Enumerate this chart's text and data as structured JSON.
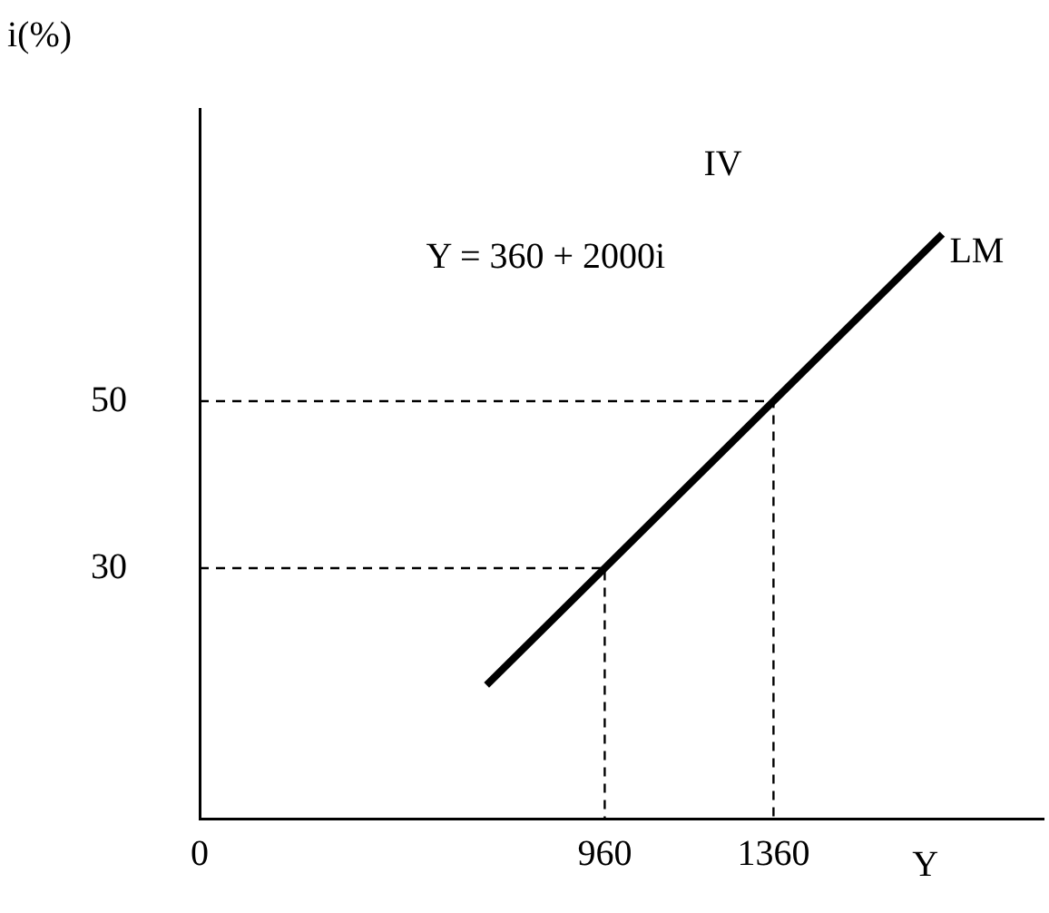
{
  "chart_data": {
    "type": "line",
    "ylabel": "i(%)",
    "xlabel": "Y",
    "annotations": [
      "IV",
      "Y = 360 + 2000i"
    ],
    "series": [
      {
        "name": "LM",
        "color": "#000000",
        "x": [
          680,
          1760
        ],
        "values": [
          16,
          70
        ]
      },
      {
        "color": "#000000",
        "line_style": "dashed",
        "x": [
          0,
          960,
          960
        ],
        "values": [
          30,
          30,
          0
        ]
      },
      {
        "color": "#000000",
        "line_style": "dashed",
        "x": [
          0,
          1360,
          1360
        ],
        "values": [
          50,
          50,
          0
        ]
      }
    ],
    "xlim": [
      0,
      2000
    ],
    "ylim": [
      0,
      85
    ],
    "xticks": [
      0,
      960,
      1360
    ],
    "yticks": [
      30,
      50
    ],
    "grid": false,
    "legend": false,
    "marker": "none"
  }
}
